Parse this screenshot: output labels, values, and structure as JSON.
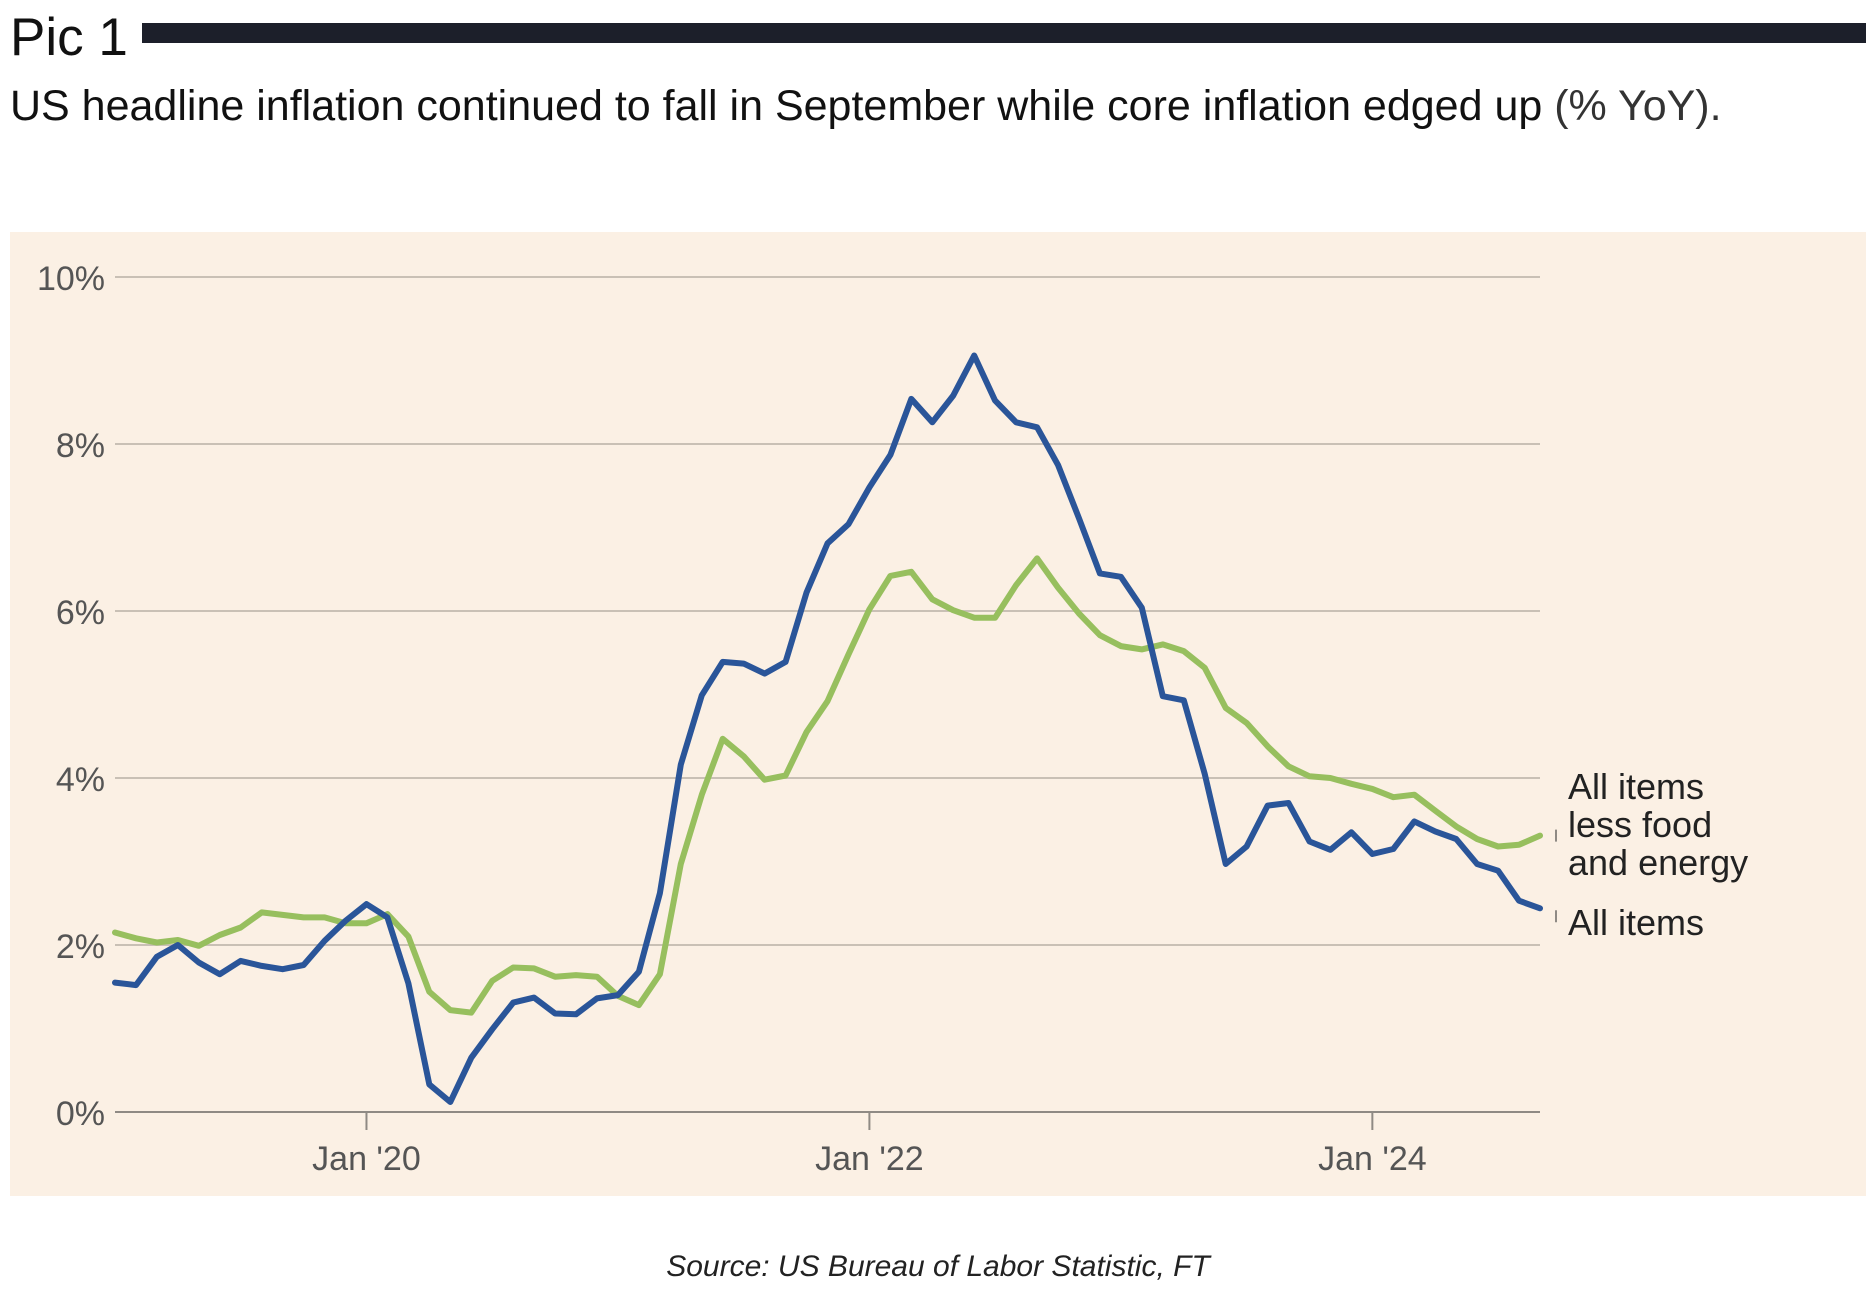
{
  "header": {
    "pic_label": "Pic 1"
  },
  "subtitle": {
    "text": "US headline inflation continued to fall in September while core inflation edged up",
    "unit": "(% YoY)."
  },
  "source": "Source: US Bureau of Labor Statistic, FT",
  "colors": {
    "panel_background": "#fbf0e4",
    "all_items": "#2a5599",
    "core": "#97bf5e",
    "gridline": "#c9c0b5",
    "header_rule": "#1c1f2a"
  },
  "chart_data": {
    "type": "line",
    "title": "",
    "xlabel": "",
    "ylabel": "",
    "ylim": [
      0,
      10
    ],
    "yticks": [
      0,
      2,
      4,
      6,
      8,
      10
    ],
    "ytick_labels": [
      "0%",
      "2%",
      "4%",
      "6%",
      "8%",
      "10%"
    ],
    "xtick_labels": [
      "Jan '20",
      "Jan '22",
      "Jan '24"
    ],
    "x_start": "2019-01",
    "x_end": "2024-09",
    "x": [
      "2019-01",
      "2019-02",
      "2019-03",
      "2019-04",
      "2019-05",
      "2019-06",
      "2019-07",
      "2019-08",
      "2019-09",
      "2019-10",
      "2019-11",
      "2019-12",
      "2020-01",
      "2020-02",
      "2020-03",
      "2020-04",
      "2020-05",
      "2020-06",
      "2020-07",
      "2020-08",
      "2020-09",
      "2020-10",
      "2020-11",
      "2020-12",
      "2021-01",
      "2021-02",
      "2021-03",
      "2021-04",
      "2021-05",
      "2021-06",
      "2021-07",
      "2021-08",
      "2021-09",
      "2021-10",
      "2021-11",
      "2021-12",
      "2022-01",
      "2022-02",
      "2022-03",
      "2022-04",
      "2022-05",
      "2022-06",
      "2022-07",
      "2022-08",
      "2022-09",
      "2022-10",
      "2022-11",
      "2022-12",
      "2023-01",
      "2023-02",
      "2023-03",
      "2023-04",
      "2023-05",
      "2023-06",
      "2023-07",
      "2023-08",
      "2023-09",
      "2023-10",
      "2023-11",
      "2023-12",
      "2024-01",
      "2024-02",
      "2024-03",
      "2024-04",
      "2024-05",
      "2024-06",
      "2024-07",
      "2024-08",
      "2024-09"
    ],
    "grid": true,
    "legend_position": "right, at line ends",
    "series": [
      {
        "name": "All items",
        "color": "#2a5599",
        "values": [
          1.55,
          1.52,
          1.86,
          2.0,
          1.79,
          1.65,
          1.81,
          1.75,
          1.71,
          1.76,
          2.05,
          2.29,
          2.49,
          2.33,
          1.54,
          0.33,
          0.12,
          0.65,
          0.99,
          1.31,
          1.37,
          1.18,
          1.17,
          1.36,
          1.4,
          1.68,
          2.62,
          4.16,
          4.99,
          5.39,
          5.37,
          5.25,
          5.39,
          6.22,
          6.81,
          7.04,
          7.48,
          7.87,
          8.54,
          8.26,
          8.58,
          9.06,
          8.52,
          8.26,
          8.2,
          7.75,
          7.11,
          6.45,
          6.41,
          6.04,
          4.98,
          4.93,
          4.05,
          2.97,
          3.18,
          3.67,
          3.7,
          3.24,
          3.14,
          3.35,
          3.09,
          3.15,
          3.48,
          3.36,
          3.27,
          2.97,
          2.89,
          2.53,
          2.44
        ]
      },
      {
        "name": "All items less food and energy",
        "color": "#97bf5e",
        "values": [
          2.15,
          2.08,
          2.03,
          2.06,
          1.99,
          2.12,
          2.21,
          2.39,
          2.36,
          2.33,
          2.33,
          2.26,
          2.26,
          2.37,
          2.1,
          1.44,
          1.22,
          1.19,
          1.57,
          1.73,
          1.72,
          1.62,
          1.64,
          1.62,
          1.39,
          1.28,
          1.65,
          2.97,
          3.8,
          4.47,
          4.26,
          3.98,
          4.03,
          4.55,
          4.92,
          5.48,
          6.02,
          6.42,
          6.47,
          6.14,
          6.01,
          5.92,
          5.92,
          6.31,
          6.63,
          6.28,
          5.97,
          5.71,
          5.58,
          5.54,
          5.6,
          5.52,
          5.32,
          4.84,
          4.66,
          4.38,
          4.14,
          4.02,
          4.0,
          3.93,
          3.87,
          3.77,
          3.8,
          3.61,
          3.42,
          3.27,
          3.18,
          3.2,
          3.31
        ]
      }
    ]
  },
  "legend": {
    "core_lines": [
      "All items",
      "less food",
      "and energy"
    ],
    "all_items": "All items"
  }
}
